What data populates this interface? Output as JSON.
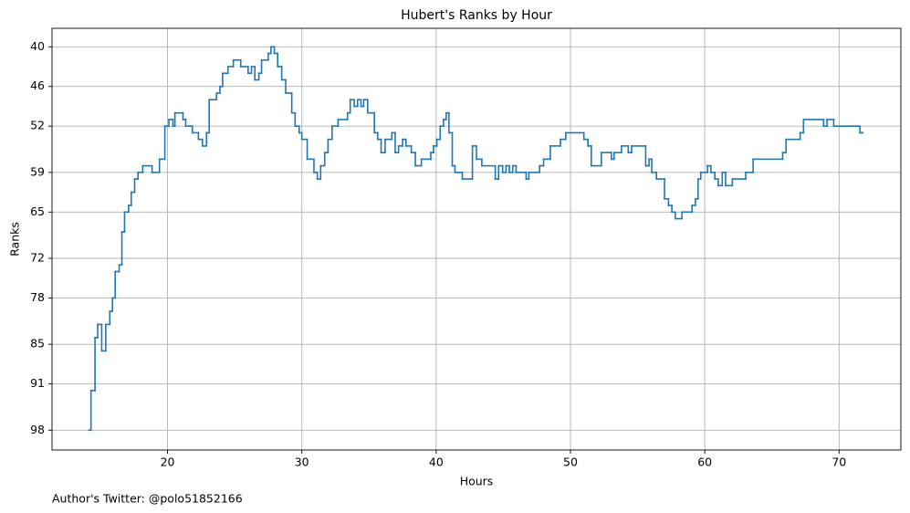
{
  "chart_data": {
    "type": "step",
    "title": "Hubert's Ranks by Hour",
    "x_label": "Hours",
    "y_label": "Ranks",
    "annotation": "Author's Twitter: @polo51852166",
    "color": "#1f77b4",
    "grid": true,
    "y_inverted": true,
    "xlim": [
      11.4,
      74.6
    ],
    "ylim": [
      37.2,
      101
    ],
    "xticks": [
      20,
      30,
      40,
      50,
      60,
      70
    ],
    "yticks": [
      40,
      46,
      52,
      59,
      65,
      72,
      78,
      85,
      91,
      98
    ],
    "x": [
      14.15,
      14.3,
      14.6,
      14.8,
      15.1,
      15.4,
      15.7,
      15.9,
      16.1,
      16.4,
      16.6,
      16.8,
      17.1,
      17.3,
      17.55,
      17.8,
      18.15,
      18.85,
      19.4,
      19.8,
      20.1,
      20.4,
      20.55,
      21.15,
      21.35,
      21.85,
      22.3,
      22.6,
      22.9,
      23.1,
      23.65,
      23.9,
      24.1,
      24.5,
      24.9,
      25.45,
      26.0,
      26.25,
      26.5,
      26.8,
      27.0,
      27.5,
      27.7,
      27.95,
      28.2,
      28.5,
      28.8,
      29.25,
      29.5,
      29.8,
      30.0,
      30.4,
      30.9,
      31.15,
      31.4,
      31.7,
      31.95,
      32.25,
      32.7,
      33.4,
      33.6,
      33.9,
      34.15,
      34.4,
      34.6,
      34.9,
      35.4,
      35.65,
      35.9,
      36.2,
      36.7,
      36.95,
      37.2,
      37.5,
      37.75,
      38.15,
      38.45,
      38.9,
      39.6,
      39.8,
      40.05,
      40.3,
      40.55,
      40.75,
      40.95,
      41.2,
      41.4,
      41.95,
      42.7,
      43.0,
      43.4,
      44.4,
      44.65,
      44.95,
      45.2,
      45.45,
      45.7,
      45.95,
      46.7,
      46.9,
      47.7,
      48.0,
      48.5,
      49.25,
      49.65,
      51.0,
      51.3,
      51.55,
      52.3,
      53.05,
      53.25,
      53.8,
      54.3,
      54.55,
      55.6,
      55.85,
      56.05,
      56.4,
      57.0,
      57.3,
      57.55,
      57.8,
      58.3,
      59.05,
      59.3,
      59.5,
      59.7,
      60.2,
      60.45,
      60.75,
      61.0,
      61.3,
      61.55,
      62.05,
      63.05,
      63.6,
      65.8,
      66.05,
      67.1,
      67.35,
      68.85,
      69.1,
      69.6,
      71.55,
      71.75
    ],
    "y": [
      98,
      92,
      84,
      82,
      86,
      82,
      80,
      78,
      74,
      73,
      68,
      65,
      64,
      62,
      60,
      59,
      58,
      59,
      57,
      52,
      51,
      52,
      50,
      51,
      52,
      53,
      54,
      55,
      53,
      48,
      47,
      46,
      44,
      43,
      42,
      43,
      44,
      43,
      45,
      44,
      42,
      41,
      40,
      41,
      43,
      45,
      47,
      50,
      52,
      53,
      54,
      57,
      59,
      60,
      58,
      56,
      54,
      52,
      51,
      50,
      48,
      49,
      48,
      49,
      48,
      50,
      53,
      54,
      56,
      54,
      53,
      56,
      55,
      54,
      55,
      56,
      58,
      57,
      56,
      55,
      54,
      52,
      51,
      50,
      53,
      58,
      59,
      60,
      55,
      57,
      58,
      60,
      58,
      59,
      58,
      59,
      58,
      59,
      60,
      59,
      58,
      57,
      55,
      54,
      53,
      54,
      55,
      58,
      56,
      57,
      56,
      55,
      56,
      55,
      58,
      57,
      59,
      60,
      63,
      64,
      65,
      66,
      65,
      64,
      63,
      60,
      59,
      58,
      59,
      60,
      61,
      59,
      61,
      60,
      59,
      57,
      56,
      54,
      53,
      51,
      52,
      51,
      52,
      53,
      53
    ]
  }
}
